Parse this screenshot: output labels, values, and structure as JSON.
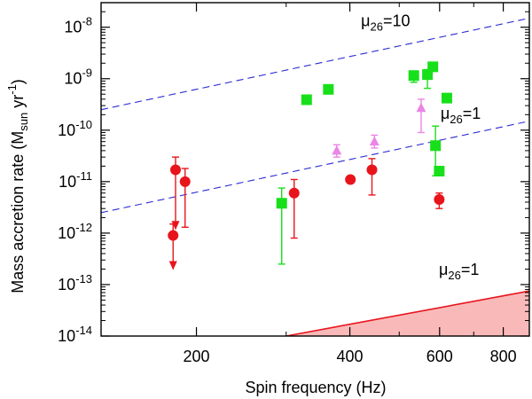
{
  "chart_data": {
    "type": "scatter",
    "xlabel": "Spin frequency (Hz)",
    "ylabel": "Mass accretion rate",
    "ylabel_sub": "sun",
    "ylabel_unit_prefix": "M",
    "ylabel_unit_suffix": " yr",
    "ylabel_unit_exp": "-1",
    "x_scale": "log",
    "y_scale": "log",
    "xlim": [
      130,
      900
    ],
    "ylim": [
      1e-14,
      3e-08
    ],
    "x_ticks": [
      {
        "value": 200,
        "label": "200"
      },
      {
        "value": 400,
        "label": "400"
      },
      {
        "value": 600,
        "label": "600"
      },
      {
        "value": 800,
        "label": "800"
      }
    ],
    "y_ticks": [
      {
        "value": 1e-14,
        "base": "10",
        "exp": "-14"
      },
      {
        "value": 1e-13,
        "base": "10",
        "exp": "-13"
      },
      {
        "value": 1e-12,
        "base": "10",
        "exp": "-12"
      },
      {
        "value": 1e-11,
        "base": "10",
        "exp": "-11"
      },
      {
        "value": 1e-10,
        "base": "10",
        "exp": "-10"
      },
      {
        "value": 1e-09,
        "base": "10",
        "exp": "-9"
      },
      {
        "value": 1e-08,
        "base": "10",
        "exp": "-8"
      }
    ],
    "colors": {
      "red": "#e8141c",
      "green": "#17e01a",
      "violet": "#ea86e6",
      "dashed": "#2a2ad6",
      "shade": "#f9b9b9",
      "axis": "#000000"
    },
    "lines": [
      {
        "name": "mu26-10",
        "style": "dashed",
        "color": "dashed",
        "x": [
          130,
          900
        ],
        "y": [
          2.5e-10,
          1.5e-08
        ]
      },
      {
        "name": "mu26-1-dashed",
        "style": "dashed",
        "color": "dashed",
        "x": [
          130,
          900
        ],
        "y": [
          2.5e-12,
          1.5e-10
        ]
      },
      {
        "name": "mu26-1-solid",
        "style": "solid",
        "color": "red",
        "x": [
          300,
          900
        ],
        "y": [
          1e-14,
          7.5e-14
        ],
        "fill_below": true
      }
    ],
    "annotations": [
      {
        "name": "mu26-10-label",
        "base": "μ",
        "sub": "26",
        "text": "=10",
        "x": 470,
        "y": 1.05e-08
      },
      {
        "name": "mu26-1-upper-label",
        "base": "μ",
        "sub": "26",
        "text": "=1",
        "x": 660,
        "y": 1.65e-10
      },
      {
        "name": "mu26-1-lower-label",
        "base": "μ",
        "sub": "26",
        "text": "=1",
        "x": 655,
        "y": 1.55e-13
      }
    ],
    "series": [
      {
        "name": "red circles",
        "marker": "circle",
        "color": "red",
        "points": [
          {
            "x": 182,
            "y": 1.7e-11,
            "yerr": [
              1.2e-12,
              3e-11
            ],
            "upper_limit": true
          },
          {
            "x": 190,
            "y": 1e-11,
            "yerr": [
              1.3e-12,
              1.8e-11
            ]
          },
          {
            "x": 180,
            "y": 9e-13,
            "yerr": [
              2e-13,
              1.5e-12
            ],
            "upper_limit": true
          },
          {
            "x": 311,
            "y": 6e-12,
            "yerr": [
              8e-13,
              1.1e-11
            ]
          },
          {
            "x": 401,
            "y": 1.1e-11
          },
          {
            "x": 442,
            "y": 1.7e-11,
            "yerr": [
              5.5e-12,
              2.8e-11
            ]
          },
          {
            "x": 599,
            "y": 4.5e-12,
            "yerr": [
              3e-12,
              6e-12
            ]
          }
        ]
      },
      {
        "name": "green squares",
        "marker": "square",
        "color": "green",
        "points": [
          {
            "x": 294,
            "y": 3.8e-12,
            "yerr": [
              2.5e-13,
              7.5e-12
            ]
          },
          {
            "x": 329,
            "y": 3.9e-10
          },
          {
            "x": 363,
            "y": 6.2e-10
          },
          {
            "x": 534,
            "y": 1.15e-09,
            "yerr": [
              8.5e-10,
              1.4e-09
            ]
          },
          {
            "x": 568,
            "y": 1.2e-09,
            "yerr": [
              6.5e-10,
              1.5e-09
            ]
          },
          {
            "x": 582,
            "y": 1.7e-09
          },
          {
            "x": 589,
            "y": 5e-11,
            "yerr": [
              1.3e-11,
              1.2e-10
            ]
          },
          {
            "x": 599,
            "y": 1.6e-11
          },
          {
            "x": 620,
            "y": 4.2e-10
          }
        ]
      },
      {
        "name": "violet triangles",
        "marker": "triangle",
        "color": "violet",
        "points": [
          {
            "x": 377,
            "y": 4e-11,
            "yerr": [
              3e-11,
              5.2e-11
            ]
          },
          {
            "x": 447,
            "y": 6e-11,
            "yerr": [
              4.5e-11,
              8e-11
            ]
          },
          {
            "x": 552,
            "y": 2.7e-10,
            "yerr": [
              9e-11,
              4e-10
            ]
          }
        ]
      }
    ]
  }
}
